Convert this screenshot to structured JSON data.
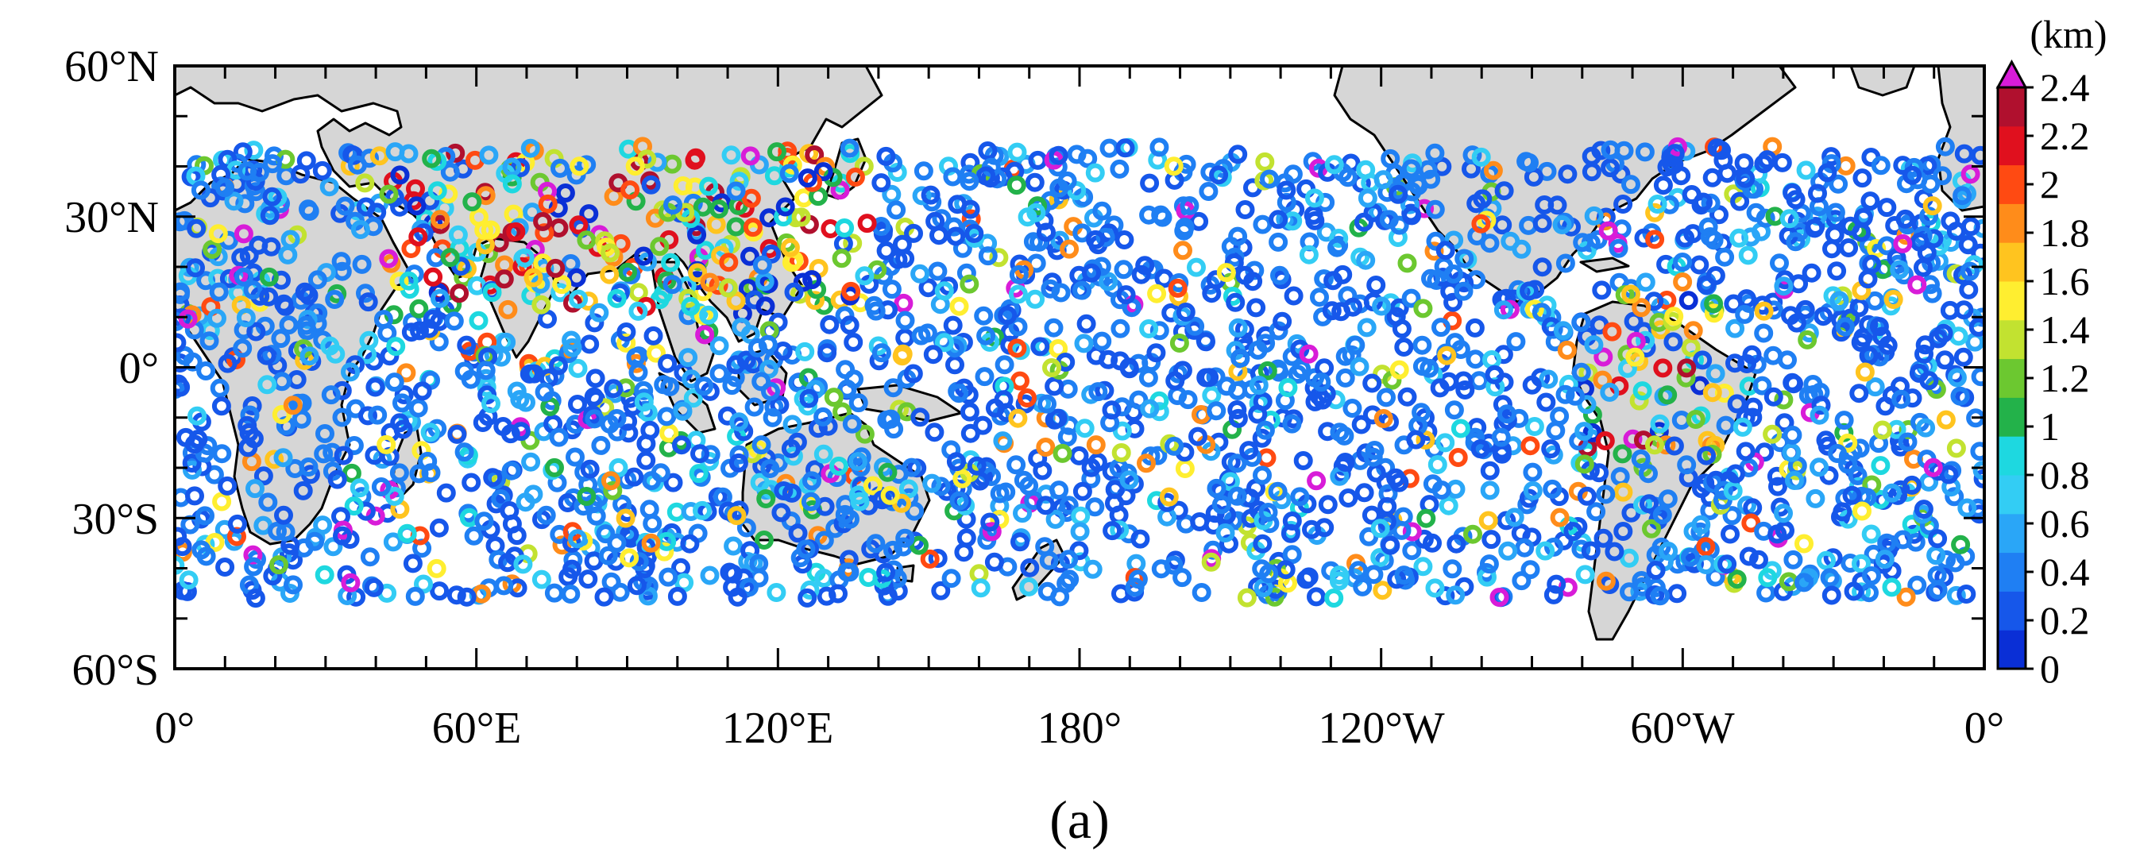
{
  "map": {
    "x_ticks": [
      "0°",
      "60°E",
      "120°E",
      "180°",
      "120°W",
      "60°W",
      "0°"
    ],
    "y_ticks": [
      "60°N",
      "30°N",
      "0°",
      "30°S",
      "60°S"
    ],
    "lon_range": [
      0,
      360
    ],
    "lat_range": [
      -60,
      60
    ]
  },
  "colorbar": {
    "unit": "(km)",
    "labels": [
      "0",
      "0.2",
      "0.4",
      "0.6",
      "0.8",
      "1",
      "1.2",
      "1.4",
      "1.6",
      "1.8",
      "2",
      "2.2",
      "2.4"
    ],
    "range": [
      0,
      2.4
    ],
    "extend": "max",
    "colors": [
      "#0a2fd6",
      "#1657ea",
      "#1f7ff3",
      "#2aa6f7",
      "#33cdf4",
      "#1ed8e0",
      "#23b24a",
      "#6cc830",
      "#c2e230",
      "#ffee30",
      "#ffc41f",
      "#ff8c1a",
      "#ff4a12",
      "#e0101e",
      "#b0102e"
    ],
    "extend_color": "#d81cd8"
  },
  "panel_label": "(a)",
  "station_distribution": {
    "description_of_density": "Observation points scattered globally between about 45°S and 45°N; most values below 0.6 km (blue), higher values concentrated over continents, Asia and the Middle East."
  }
}
